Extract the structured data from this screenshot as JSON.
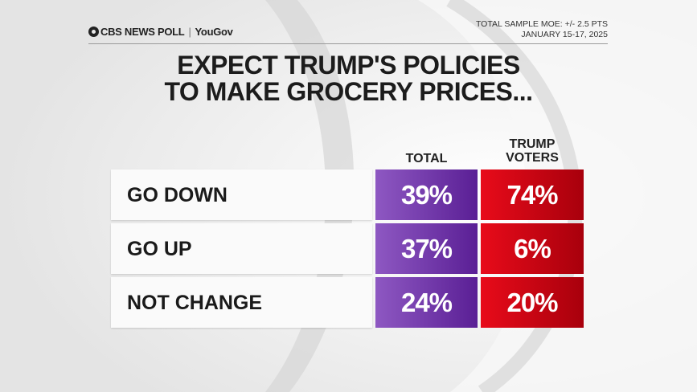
{
  "header": {
    "brand": "CBS NEWS POLL",
    "partner": "YouGov",
    "moe": "TOTAL SAMPLE MOE: +/- 2.5 PTS",
    "dates": "JANUARY 15-17, 2025"
  },
  "chart_data": {
    "type": "table",
    "title_line1": "EXPECT TRUMP'S POLICIES",
    "title_line2": "TO MAKE GROCERY PRICES...",
    "columns": [
      {
        "line1": "TOTAL",
        "line2": ""
      },
      {
        "line1": "TRUMP",
        "line2": "VOTERS"
      }
    ],
    "rows": [
      {
        "label": "GO DOWN",
        "total": "39%",
        "trump": "74%"
      },
      {
        "label": "GO UP",
        "total": "37%",
        "trump": "6%"
      },
      {
        "label": "NOT CHANGE",
        "total": "24%",
        "trump": "20%"
      }
    ],
    "series": [
      {
        "name": "TOTAL",
        "values": [
          39,
          37,
          24
        ]
      },
      {
        "name": "TRUMP VOTERS",
        "values": [
          74,
          6,
          20
        ]
      }
    ],
    "colors": {
      "total": "#7a3fb0",
      "trump": "#d9001b"
    }
  }
}
